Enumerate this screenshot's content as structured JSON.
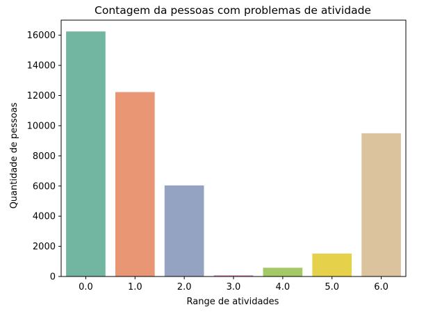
{
  "chart_data": {
    "type": "bar",
    "title": "Contagem da pessoas com problemas de atividade",
    "xlabel": "Range de atividades",
    "ylabel": "Quantidade de pessoas",
    "categories": [
      "0.0",
      "1.0",
      "2.0",
      "3.0",
      "4.0",
      "5.0",
      "6.0"
    ],
    "values": [
      16250,
      12230,
      6040,
      80,
      580,
      1520,
      9500
    ],
    "colors": [
      "#72b6a1",
      "#e99675",
      "#95a3c3",
      "#d58fc1",
      "#a4c865",
      "#e6d24a",
      "#dbc49d"
    ],
    "ylim": [
      0,
      17000
    ],
    "yticks": [
      0,
      2000,
      4000,
      6000,
      8000,
      10000,
      12000,
      14000,
      16000
    ],
    "ytick_labels": [
      "0",
      "2000",
      "4000",
      "6000",
      "8000",
      "10000",
      "12000",
      "14000",
      "16000"
    ],
    "grid": false,
    "legend": "none"
  }
}
